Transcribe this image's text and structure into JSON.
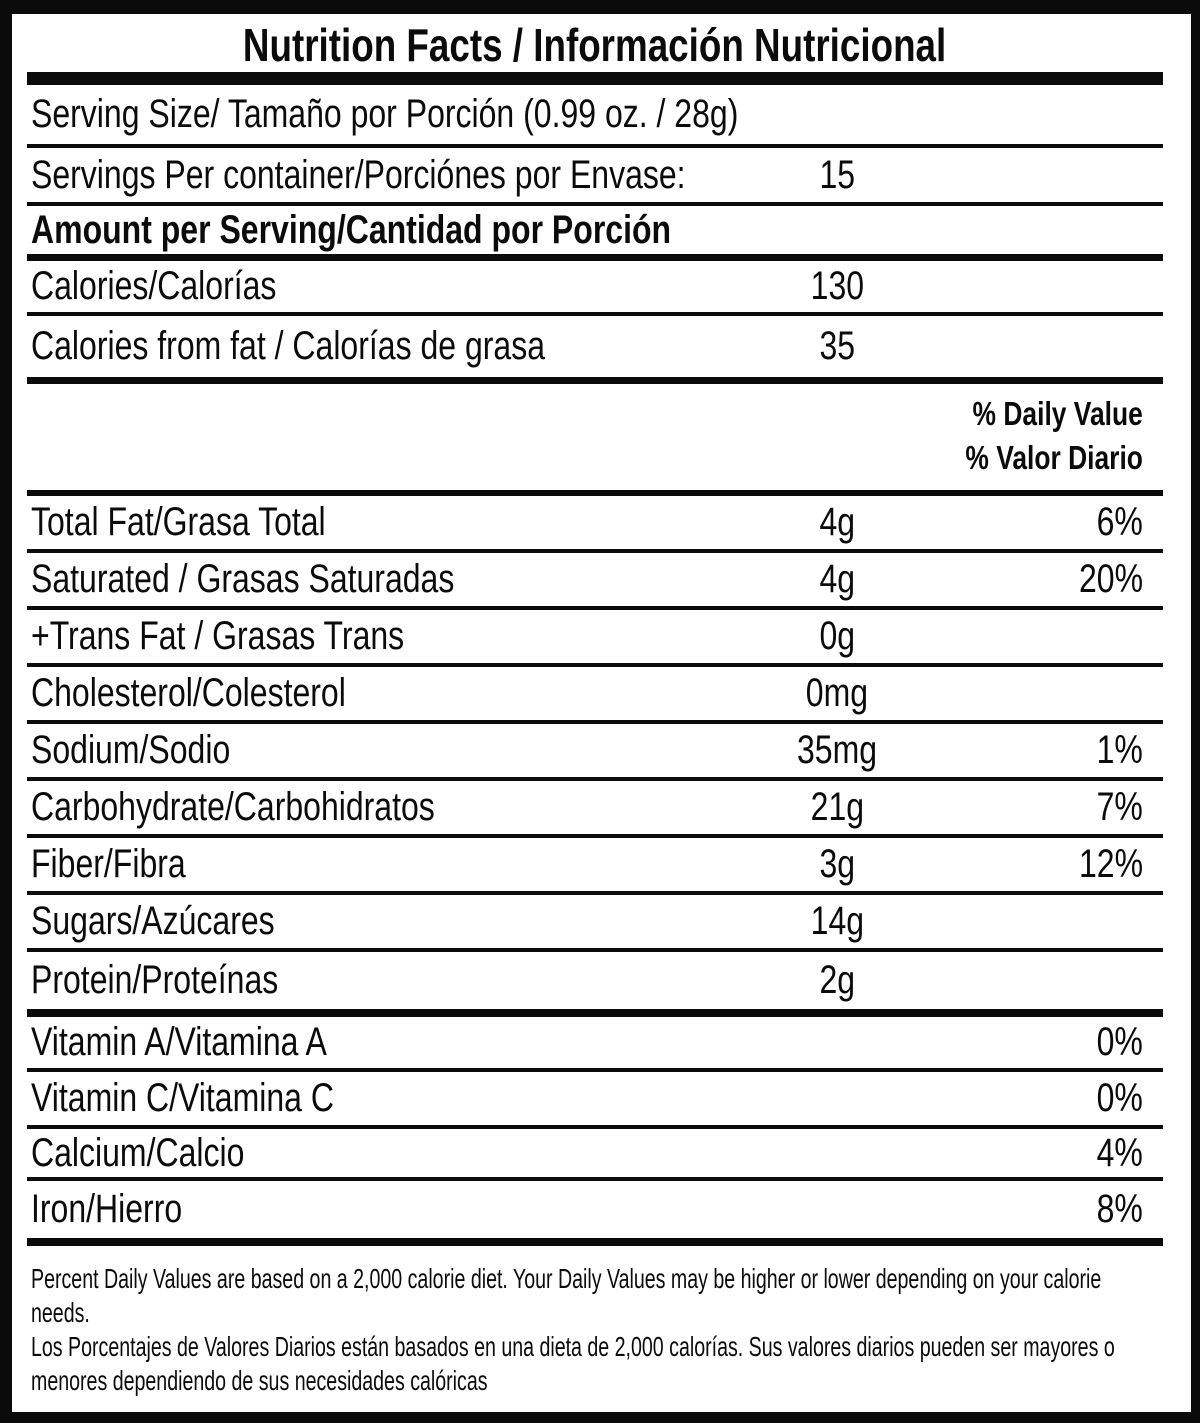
{
  "title": "Nutrition Facts / Información Nutricional",
  "serving": {
    "size": "Serving Size/ Tamaño por Porción  (0.99 oz. / 28g)",
    "per_container_label": "Servings Per container/Porciónes por Envase:",
    "per_container_value": "15",
    "amount_header": "Amount per Serving/Cantidad por Porción"
  },
  "daily_value_header": {
    "en": "% Daily Value",
    "es": "% Valor Diario"
  },
  "rows": [
    {
      "label": "Calories/Calorías",
      "value": "130",
      "dv": ""
    },
    {
      "label": "Calories from fat / Calorías de grasa",
      "value": "35",
      "dv": ""
    },
    {
      "label": "Total Fat/Grasa Total",
      "value": "4g",
      "dv": "6%"
    },
    {
      "label": "Saturated / Grasas Saturadas",
      "value": "4g",
      "dv": "20%"
    },
    {
      "label": "+Trans Fat / Grasas Trans",
      "value": "0g",
      "dv": ""
    },
    {
      "label": "Cholesterol/Colesterol",
      "value": "0mg",
      "dv": ""
    },
    {
      "label": "Sodium/Sodio",
      "value": "35mg",
      "dv": "1%"
    },
    {
      "label": "Carbohydrate/Carbohidratos",
      "value": "21g",
      "dv": "7%"
    },
    {
      "label": "Fiber/Fibra",
      "value": "3g",
      "dv": "12%"
    },
    {
      "label": "Sugars/Azúcares",
      "value": "14g",
      "dv": ""
    },
    {
      "label": "Protein/Proteínas",
      "value": "2g",
      "dv": ""
    },
    {
      "label": "Vitamin A/Vitamina A",
      "value": "",
      "dv": "0%"
    },
    {
      "label": "Vitamin C/Vitamina C",
      "value": "",
      "dv": "0%"
    },
    {
      "label": "Calcium/Calcio",
      "value": "",
      "dv": "4%"
    },
    {
      "label": "Iron/Hierro",
      "value": "",
      "dv": "8%"
    }
  ],
  "footnotes": {
    "en": "Percent Daily Values are based on a 2,000 calorie diet. Your Daily Values may be higher or lower depending on your calorie needs.",
    "es": "Los Porcentajes de Valores Diarios están basados en una dieta de 2,000 calorías. Sus valores diarios pueden ser mayores o menores dependiendo de sus necesidades calóricas"
  },
  "colors": {
    "ink": "#0b0b0b",
    "paper": "#ffffff"
  }
}
